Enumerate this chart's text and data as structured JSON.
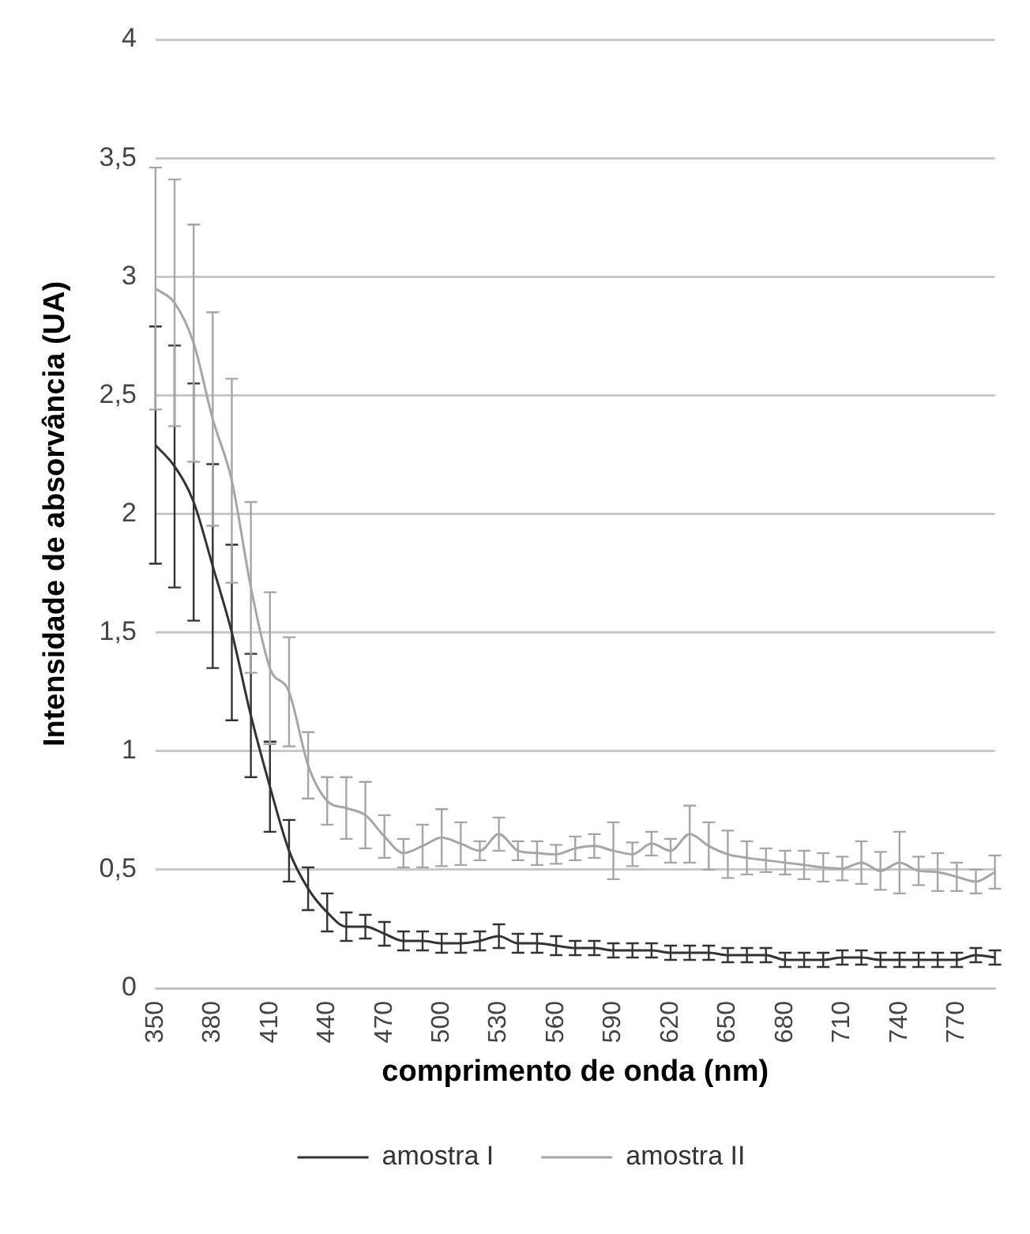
{
  "chart_data": {
    "type": "line",
    "xlabel": "comprimento de onda (nm)",
    "ylabel": "Intensidade de absorvância (UA)",
    "categories": [
      "350",
      null,
      null,
      "380",
      null,
      null,
      "410",
      null,
      null,
      "440",
      null,
      null,
      "470",
      null,
      null,
      "500",
      null,
      null,
      "530",
      null,
      null,
      "560",
      null,
      null,
      "590",
      null,
      null,
      "620",
      null,
      null,
      "650",
      null,
      null,
      "680",
      null,
      null,
      "710",
      null,
      null,
      "740",
      null,
      null,
      "770",
      null,
      null
    ],
    "series": [
      {
        "name": "amostra I",
        "color": "#333333",
        "values": [
          2.29,
          2.2,
          2.05,
          1.78,
          1.5,
          1.15,
          0.85,
          0.58,
          0.42,
          0.32,
          0.26,
          0.26,
          0.23,
          0.2,
          0.2,
          0.19,
          0.19,
          0.2,
          0.22,
          0.19,
          0.19,
          0.18,
          0.17,
          0.17,
          0.16,
          0.16,
          0.16,
          0.15,
          0.15,
          0.15,
          0.14,
          0.14,
          0.14,
          0.12,
          0.12,
          0.12,
          0.13,
          0.13,
          0.12,
          0.12,
          0.12,
          0.12,
          0.12,
          0.14,
          0.13
        ],
        "errors": [
          0.5,
          0.51,
          0.5,
          0.43,
          0.37,
          0.26,
          0.19,
          0.13,
          0.09,
          0.08,
          0.06,
          0.05,
          0.05,
          0.04,
          0.04,
          0.04,
          0.04,
          0.04,
          0.05,
          0.04,
          0.04,
          0.04,
          0.03,
          0.03,
          0.03,
          0.03,
          0.03,
          0.03,
          0.03,
          0.03,
          0.03,
          0.03,
          0.03,
          0.03,
          0.03,
          0.03,
          0.03,
          0.03,
          0.03,
          0.03,
          0.03,
          0.03,
          0.03,
          0.03,
          0.03
        ]
      },
      {
        "name": "amostra II",
        "color": "#a6a6a6",
        "values": [
          2.95,
          2.89,
          2.72,
          2.4,
          2.14,
          1.69,
          1.35,
          1.25,
          0.94,
          0.79,
          0.76,
          0.73,
          0.64,
          0.57,
          0.6,
          0.635,
          0.61,
          0.58,
          0.65,
          0.58,
          0.57,
          0.565,
          0.59,
          0.6,
          0.58,
          0.565,
          0.61,
          0.58,
          0.65,
          0.6,
          0.565,
          0.55,
          0.54,
          0.53,
          0.52,
          0.51,
          0.505,
          0.53,
          0.495,
          0.53,
          0.495,
          0.49,
          0.47,
          0.45,
          0.49
        ],
        "errors": [
          0.51,
          0.52,
          0.5,
          0.45,
          0.43,
          0.36,
          0.32,
          0.23,
          0.14,
          0.1,
          0.13,
          0.14,
          0.09,
          0.06,
          0.09,
          0.12,
          0.09,
          0.04,
          0.07,
          0.04,
          0.05,
          0.04,
          0.05,
          0.05,
          0.12,
          0.05,
          0.05,
          0.05,
          0.12,
          0.1,
          0.1,
          0.07,
          0.05,
          0.05,
          0.06,
          0.06,
          0.05,
          0.09,
          0.08,
          0.13,
          0.06,
          0.08,
          0.06,
          0.05,
          0.07
        ]
      }
    ],
    "ylim": [
      0,
      4
    ],
    "yticks": [
      0,
      {
        "value": 0.5,
        "label": "0,5"
      },
      1,
      {
        "value": 1.5,
        "label": "1,5"
      },
      2,
      {
        "value": 2.5,
        "label": "2,5"
      },
      3,
      {
        "value": 3.5,
        "label": "3,5"
      },
      4
    ],
    "grid": "y",
    "legend": "bottom",
    "line_style": "solid"
  }
}
